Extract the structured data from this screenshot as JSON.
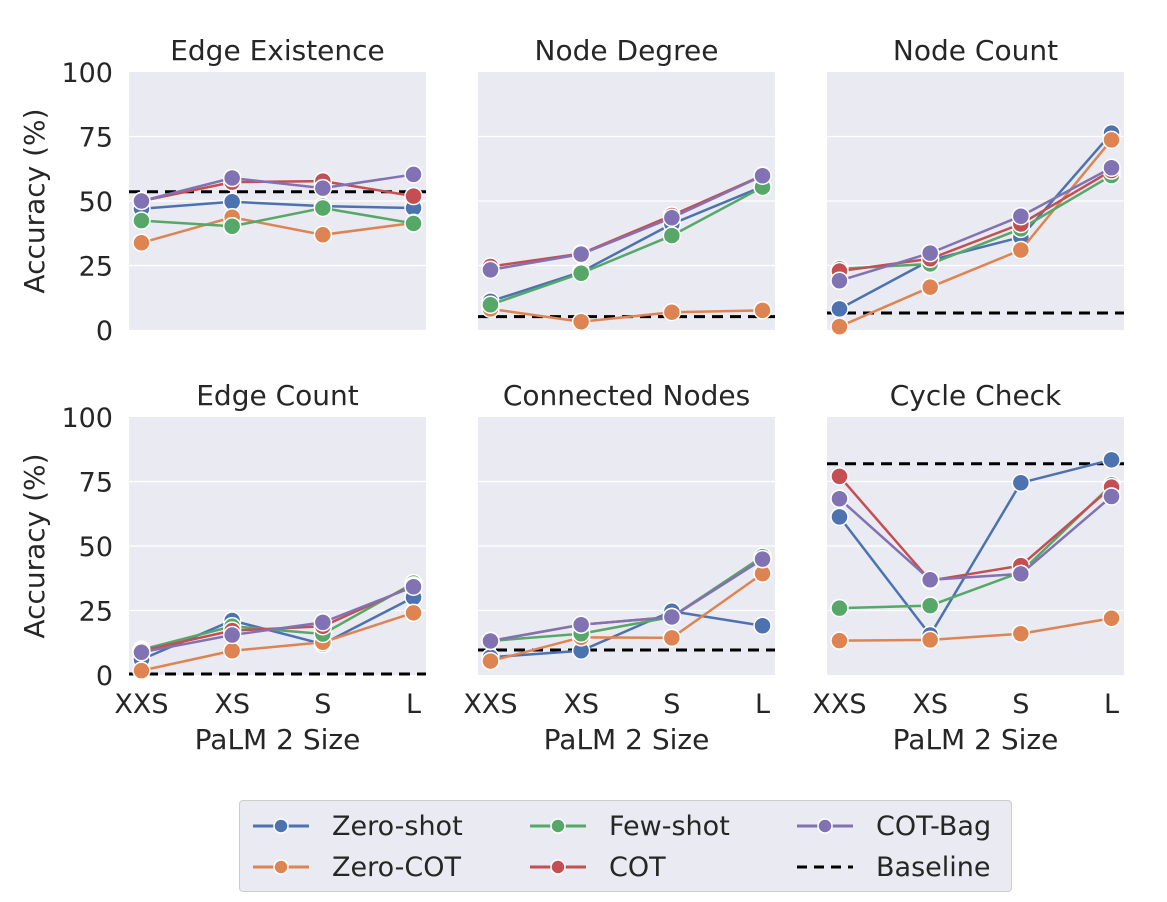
{
  "chart_data": [
    {
      "type": "line",
      "title": "Edge Existence",
      "xlabel": "",
      "ylabel": "Accuracy (%)",
      "categories": [
        "XXS",
        "XS",
        "S",
        "L"
      ],
      "ylim": [
        0,
        100
      ],
      "yticks": [
        0,
        25,
        50,
        75,
        100
      ],
      "series": [
        {
          "name": "Zero-shot",
          "values": [
            47.0,
            49.7,
            48.0,
            47.3
          ]
        },
        {
          "name": "Zero-COT",
          "values": [
            33.8,
            43.7,
            36.9,
            41.5
          ]
        },
        {
          "name": "Few-shot",
          "values": [
            42.4,
            40.2,
            47.3,
            41.3
          ]
        },
        {
          "name": "COT",
          "values": [
            50.0,
            57.3,
            57.7,
            51.9
          ]
        },
        {
          "name": "COT-Bag",
          "values": [
            50.0,
            58.9,
            55.0,
            60.3
          ]
        }
      ],
      "baseline": 53.6
    },
    {
      "type": "line",
      "title": "Node Degree",
      "xlabel": "",
      "ylabel": "",
      "categories": [
        "XXS",
        "XS",
        "S",
        "L"
      ],
      "ylim": [
        0,
        100
      ],
      "yticks": [
        0,
        25,
        50,
        75,
        100
      ],
      "series": [
        {
          "name": "Zero-shot",
          "values": [
            11.1,
            22.5,
            41.1,
            55.6
          ]
        },
        {
          "name": "Zero-COT",
          "values": [
            8.2,
            3.2,
            6.9,
            7.6
          ]
        },
        {
          "name": "Few-shot",
          "values": [
            9.8,
            22.0,
            36.6,
            55.4
          ]
        },
        {
          "name": "COT",
          "values": [
            24.6,
            29.6,
            44.4,
            59.9
          ]
        },
        {
          "name": "COT-Bag",
          "values": [
            23.3,
            29.4,
            43.5,
            59.8
          ]
        }
      ],
      "baseline": 5.2
    },
    {
      "type": "line",
      "title": "Node Count",
      "xlabel": "",
      "ylabel": "",
      "categories": [
        "XXS",
        "XS",
        "S",
        "L"
      ],
      "ylim": [
        0,
        100
      ],
      "yticks": [
        0,
        25,
        50,
        75,
        100
      ],
      "series": [
        {
          "name": "Zero-shot",
          "values": [
            8.2,
            27.0,
            36.0,
            76.3
          ]
        },
        {
          "name": "Zero-COT",
          "values": [
            1.3,
            16.6,
            31.0,
            73.7
          ]
        },
        {
          "name": "Few-shot",
          "values": [
            23.7,
            25.6,
            39.2,
            59.9
          ]
        },
        {
          "name": "COT",
          "values": [
            22.8,
            27.6,
            41.1,
            61.8
          ]
        },
        {
          "name": "COT-Bag",
          "values": [
            19.1,
            29.8,
            44.1,
            62.9
          ]
        }
      ],
      "baseline": 6.6
    },
    {
      "type": "line",
      "title": "Edge Count",
      "xlabel": "PaLM 2 Size",
      "ylabel": "Accuracy (%)",
      "categories": [
        "XXS",
        "XS",
        "S",
        "L"
      ],
      "ylim": [
        0,
        100
      ],
      "yticks": [
        0,
        25,
        50,
        75,
        100
      ],
      "series": [
        {
          "name": "Zero-shot",
          "values": [
            6.0,
            21.1,
            12.0,
            30.1
          ]
        },
        {
          "name": "Zero-COT",
          "values": [
            1.7,
            9.4,
            12.7,
            24.1
          ]
        },
        {
          "name": "Few-shot",
          "values": [
            9.8,
            18.9,
            15.9,
            35.6
          ]
        },
        {
          "name": "COT",
          "values": [
            9.4,
            17.2,
            18.9,
            34.7
          ]
        },
        {
          "name": "COT-Bag",
          "values": [
            8.8,
            15.5,
            20.4,
            34.2
          ]
        }
      ],
      "baseline": 0.4
    },
    {
      "type": "line",
      "title": "Connected Nodes",
      "xlabel": "PaLM 2 Size",
      "ylabel": "",
      "categories": [
        "XXS",
        "XS",
        "S",
        "L"
      ],
      "ylim": [
        0,
        100
      ],
      "yticks": [
        0,
        25,
        50,
        75,
        100
      ],
      "series": [
        {
          "name": "Zero-shot",
          "values": [
            6.9,
            9.4,
            24.7,
            19.1
          ]
        },
        {
          "name": "Zero-COT",
          "values": [
            5.4,
            14.6,
            14.4,
            39.3
          ]
        },
        {
          "name": "Few-shot",
          "values": [
            13.2,
            16.0,
            22.5,
            45.9
          ]
        },
        {
          "name": "COT",
          "values": [
            13.2,
            19.5,
            22.5,
            44.9
          ]
        },
        {
          "name": "COT-Bag",
          "values": [
            13.2,
            19.5,
            22.5,
            44.9
          ]
        }
      ],
      "baseline": 9.7
    },
    {
      "type": "line",
      "title": "Cycle Check",
      "xlabel": "PaLM 2 Size",
      "ylabel": "",
      "categories": [
        "XXS",
        "XS",
        "S",
        "L"
      ],
      "ylim": [
        0,
        100
      ],
      "yticks": [
        0,
        25,
        50,
        75,
        100
      ],
      "series": [
        {
          "name": "Zero-shot",
          "values": [
            61.3,
            15.5,
            74.5,
            83.4
          ]
        },
        {
          "name": "Zero-COT",
          "values": [
            13.3,
            13.6,
            16.0,
            22.0
          ]
        },
        {
          "name": "Few-shot",
          "values": [
            25.9,
            26.9,
            39.8,
            73.7
          ]
        },
        {
          "name": "COT",
          "values": [
            77.0,
            36.6,
            42.4,
            72.8
          ]
        },
        {
          "name": "COT-Bag",
          "values": [
            68.3,
            36.9,
            39.2,
            69.2
          ]
        }
      ],
      "baseline": 81.9
    }
  ],
  "series_colors": {
    "Zero-shot": "#4c72b0",
    "Zero-COT": "#dd8452",
    "Few-shot": "#55a868",
    "COT": "#c44e52",
    "COT-Bag": "#8172b3",
    "Baseline": "#000000"
  },
  "draw_order": [
    "Zero-shot",
    "Zero-COT",
    "Few-shot",
    "COT",
    "COT-Bag"
  ],
  "legend": {
    "placement": "bottom-center",
    "items": [
      {
        "label": "Zero-shot",
        "style": "line-marker"
      },
      {
        "label": "Few-shot",
        "style": "line-marker"
      },
      {
        "label": "COT-Bag",
        "style": "line-marker"
      },
      {
        "label": "Zero-COT",
        "style": "line-marker"
      },
      {
        "label": "COT",
        "style": "line-marker"
      },
      {
        "label": "Baseline",
        "style": "dashed"
      }
    ]
  }
}
